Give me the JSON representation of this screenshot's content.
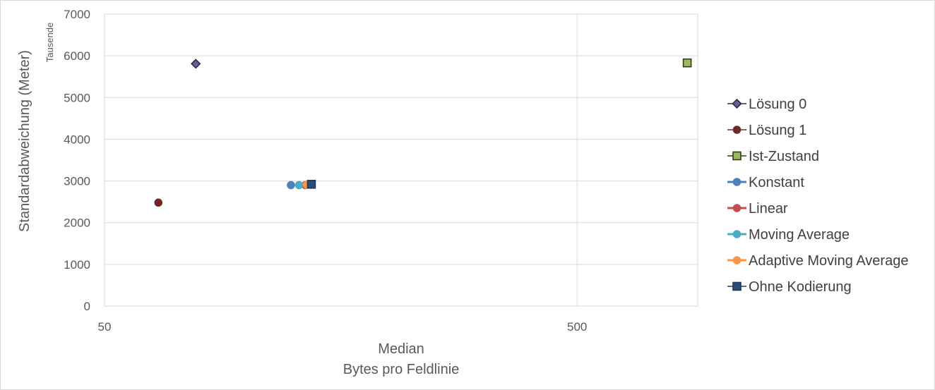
{
  "chart_data": {
    "type": "scatter",
    "xlabel": "Median",
    "xlabel_sub": "Bytes pro Feldlinie",
    "ylabel": "Standardabweichung (Meter)",
    "y_display_units": "Tausende",
    "x_scale": "log",
    "xlim": [
      50,
      900
    ],
    "ylim": [
      0,
      7000
    ],
    "x_ticks": [
      "50",
      "500"
    ],
    "y_ticks": [
      "0",
      "1000",
      "2000",
      "3000",
      "4000",
      "5000",
      "6000",
      "7000"
    ],
    "grid": true,
    "legend_position": "right",
    "series": [
      {
        "name": "Lösung 0",
        "marker": "diamond",
        "color": "#2e2a4a",
        "fill": "#6b5b95",
        "x": 78,
        "y": 5810
      },
      {
        "name": "Lösung 1",
        "marker": "circle",
        "color": "#6b2a2a",
        "fill": "#6b2a2a",
        "x": 65,
        "y": 2480
      },
      {
        "name": "Ist-Zustand",
        "marker": "square",
        "color": "#2f3b1a",
        "fill": "#9bbb59",
        "x": 855,
        "y": 5830
      },
      {
        "name": "Konstant",
        "marker": "circle",
        "color": "#4f81bd",
        "fill": "#4f81bd",
        "x": 124,
        "y": 2900
      },
      {
        "name": "Linear",
        "marker": "circle",
        "color": "#c0504d",
        "fill": "#c0504d",
        "x": 133,
        "y": 2900
      },
      {
        "name": "Moving Average",
        "marker": "circle",
        "color": "#4bacc6",
        "fill": "#4bacc6",
        "x": 129,
        "y": 2900
      },
      {
        "name": "Adaptive Moving Average",
        "marker": "circle",
        "color": "#f79646",
        "fill": "#f79646",
        "x": 134,
        "y": 2910
      },
      {
        "name": "Ohne Kodierung",
        "marker": "square",
        "color": "#1f3864",
        "fill": "#2c4d75",
        "x": 137,
        "y": 2920
      }
    ]
  }
}
